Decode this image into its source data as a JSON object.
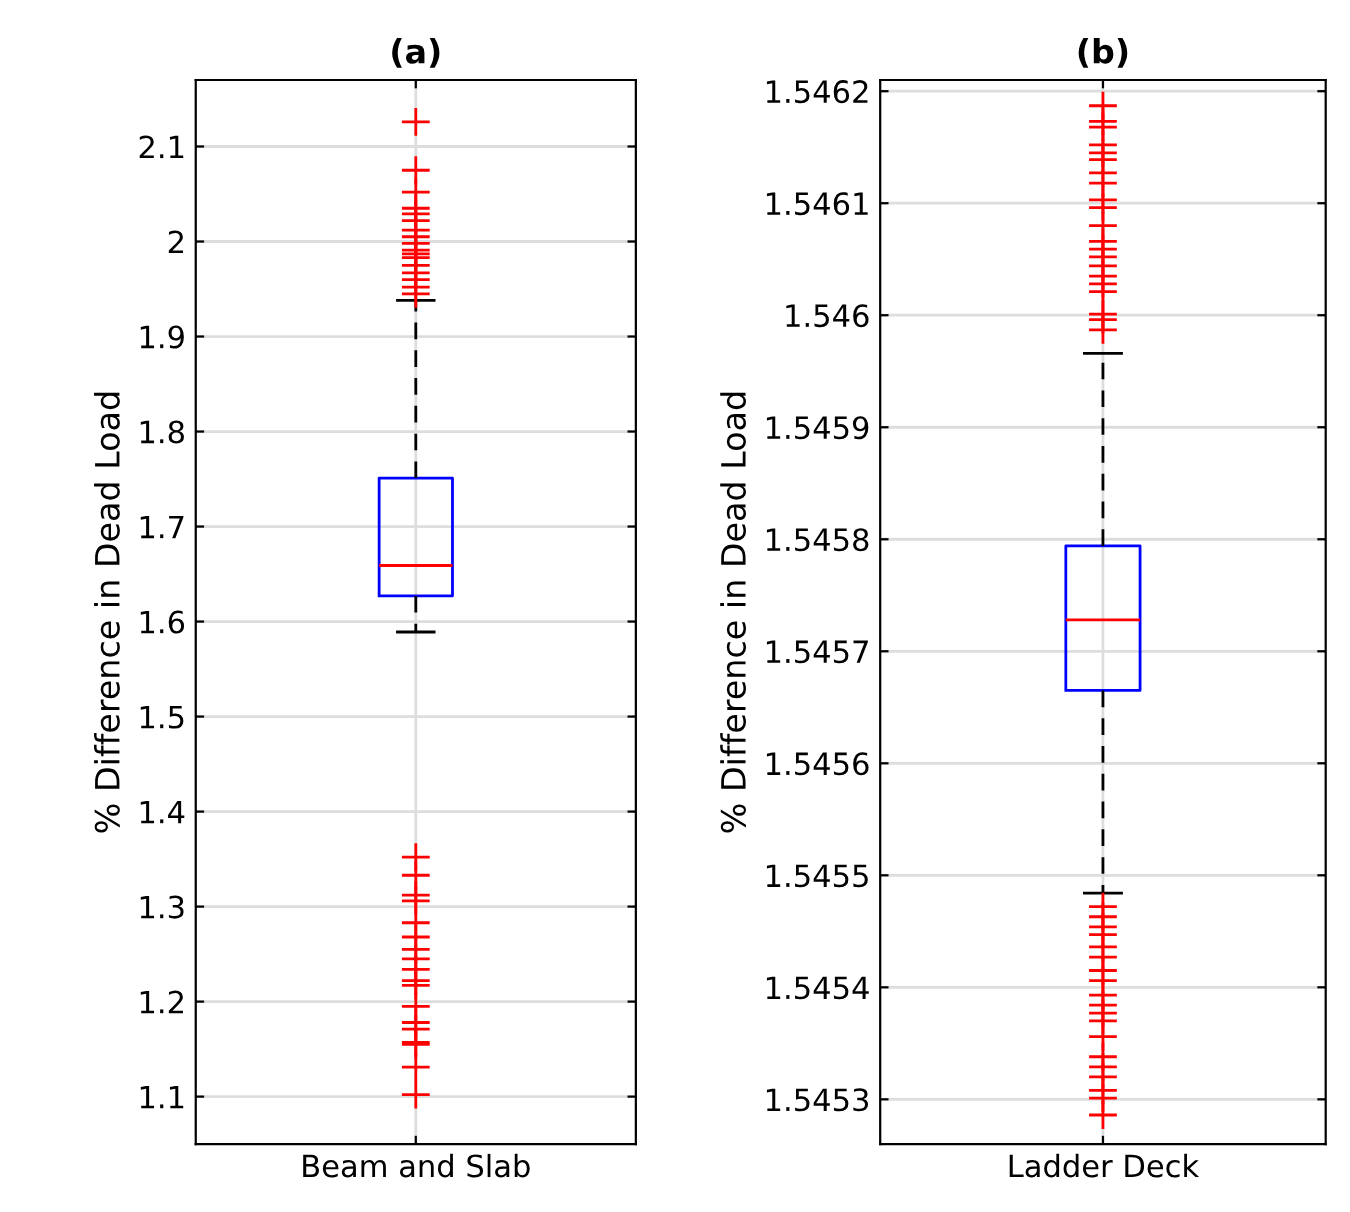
{
  "chart_data": [
    {
      "type": "box",
      "title": "(a)",
      "ylabel": "% Difference in Dead Load",
      "categories": [
        "Beam and Slab"
      ],
      "ylim": [
        1.05,
        2.17
      ],
      "yticks": [
        1.1,
        1.2,
        1.3,
        1.4,
        1.5,
        1.6,
        1.7,
        1.8,
        1.9,
        2,
        2.1
      ],
      "grid": true,
      "legend": false,
      "marker": "cross",
      "line_style": "dashed",
      "boxes": [
        {
          "low": 1.589,
          "q1": 1.627,
          "median": 1.659,
          "q3": 1.751,
          "high": 1.938,
          "outliers": [
            2.126,
            2.075,
            2.052,
            2.035,
            2.029,
            2.022,
            2.012,
            2.005,
            1.998,
            1.991,
            1.987,
            1.983,
            1.975,
            1.967,
            1.96,
            1.952,
            1.945,
            1.352,
            1.333,
            1.312,
            1.306,
            1.283,
            1.268,
            1.255,
            1.245,
            1.234,
            1.222,
            1.217,
            1.195,
            1.178,
            1.171,
            1.157,
            1.155,
            1.131,
            1.102
          ]
        }
      ]
    },
    {
      "type": "box",
      "title": "(b)",
      "ylabel": "% Difference in Dead Load",
      "categories": [
        "Ladder Deck"
      ],
      "ylim": [
        1.54526,
        1.54621
      ],
      "yticks": [
        1.5453,
        1.5454,
        1.5455,
        1.5456,
        1.5457,
        1.5458,
        1.5459,
        1.546,
        1.5461,
        1.5462
      ],
      "grid": true,
      "legend": false,
      "marker": "cross",
      "line_style": "dashed",
      "boxes": [
        {
          "low": 1.545484,
          "q1": 1.545665,
          "median": 1.545728,
          "q3": 1.545794,
          "high": 1.545966,
          "outliers": [
            1.546187,
            1.546173,
            1.546168,
            1.546152,
            1.546145,
            1.546139,
            1.546127,
            1.546118,
            1.546103,
            1.546096,
            1.54608,
            1.546066,
            1.546059,
            1.546052,
            1.546044,
            1.546035,
            1.546028,
            1.546021,
            1.546001,
            1.545996,
            1.545987,
            1.545472,
            1.545463,
            1.545454,
            1.545447,
            1.545436,
            1.545427,
            1.545415,
            1.545406,
            1.545393,
            1.545384,
            1.545377,
            1.54537,
            1.545356,
            1.545338,
            1.545329,
            1.54532,
            1.545308,
            1.545301,
            1.545286
          ]
        }
      ]
    }
  ]
}
